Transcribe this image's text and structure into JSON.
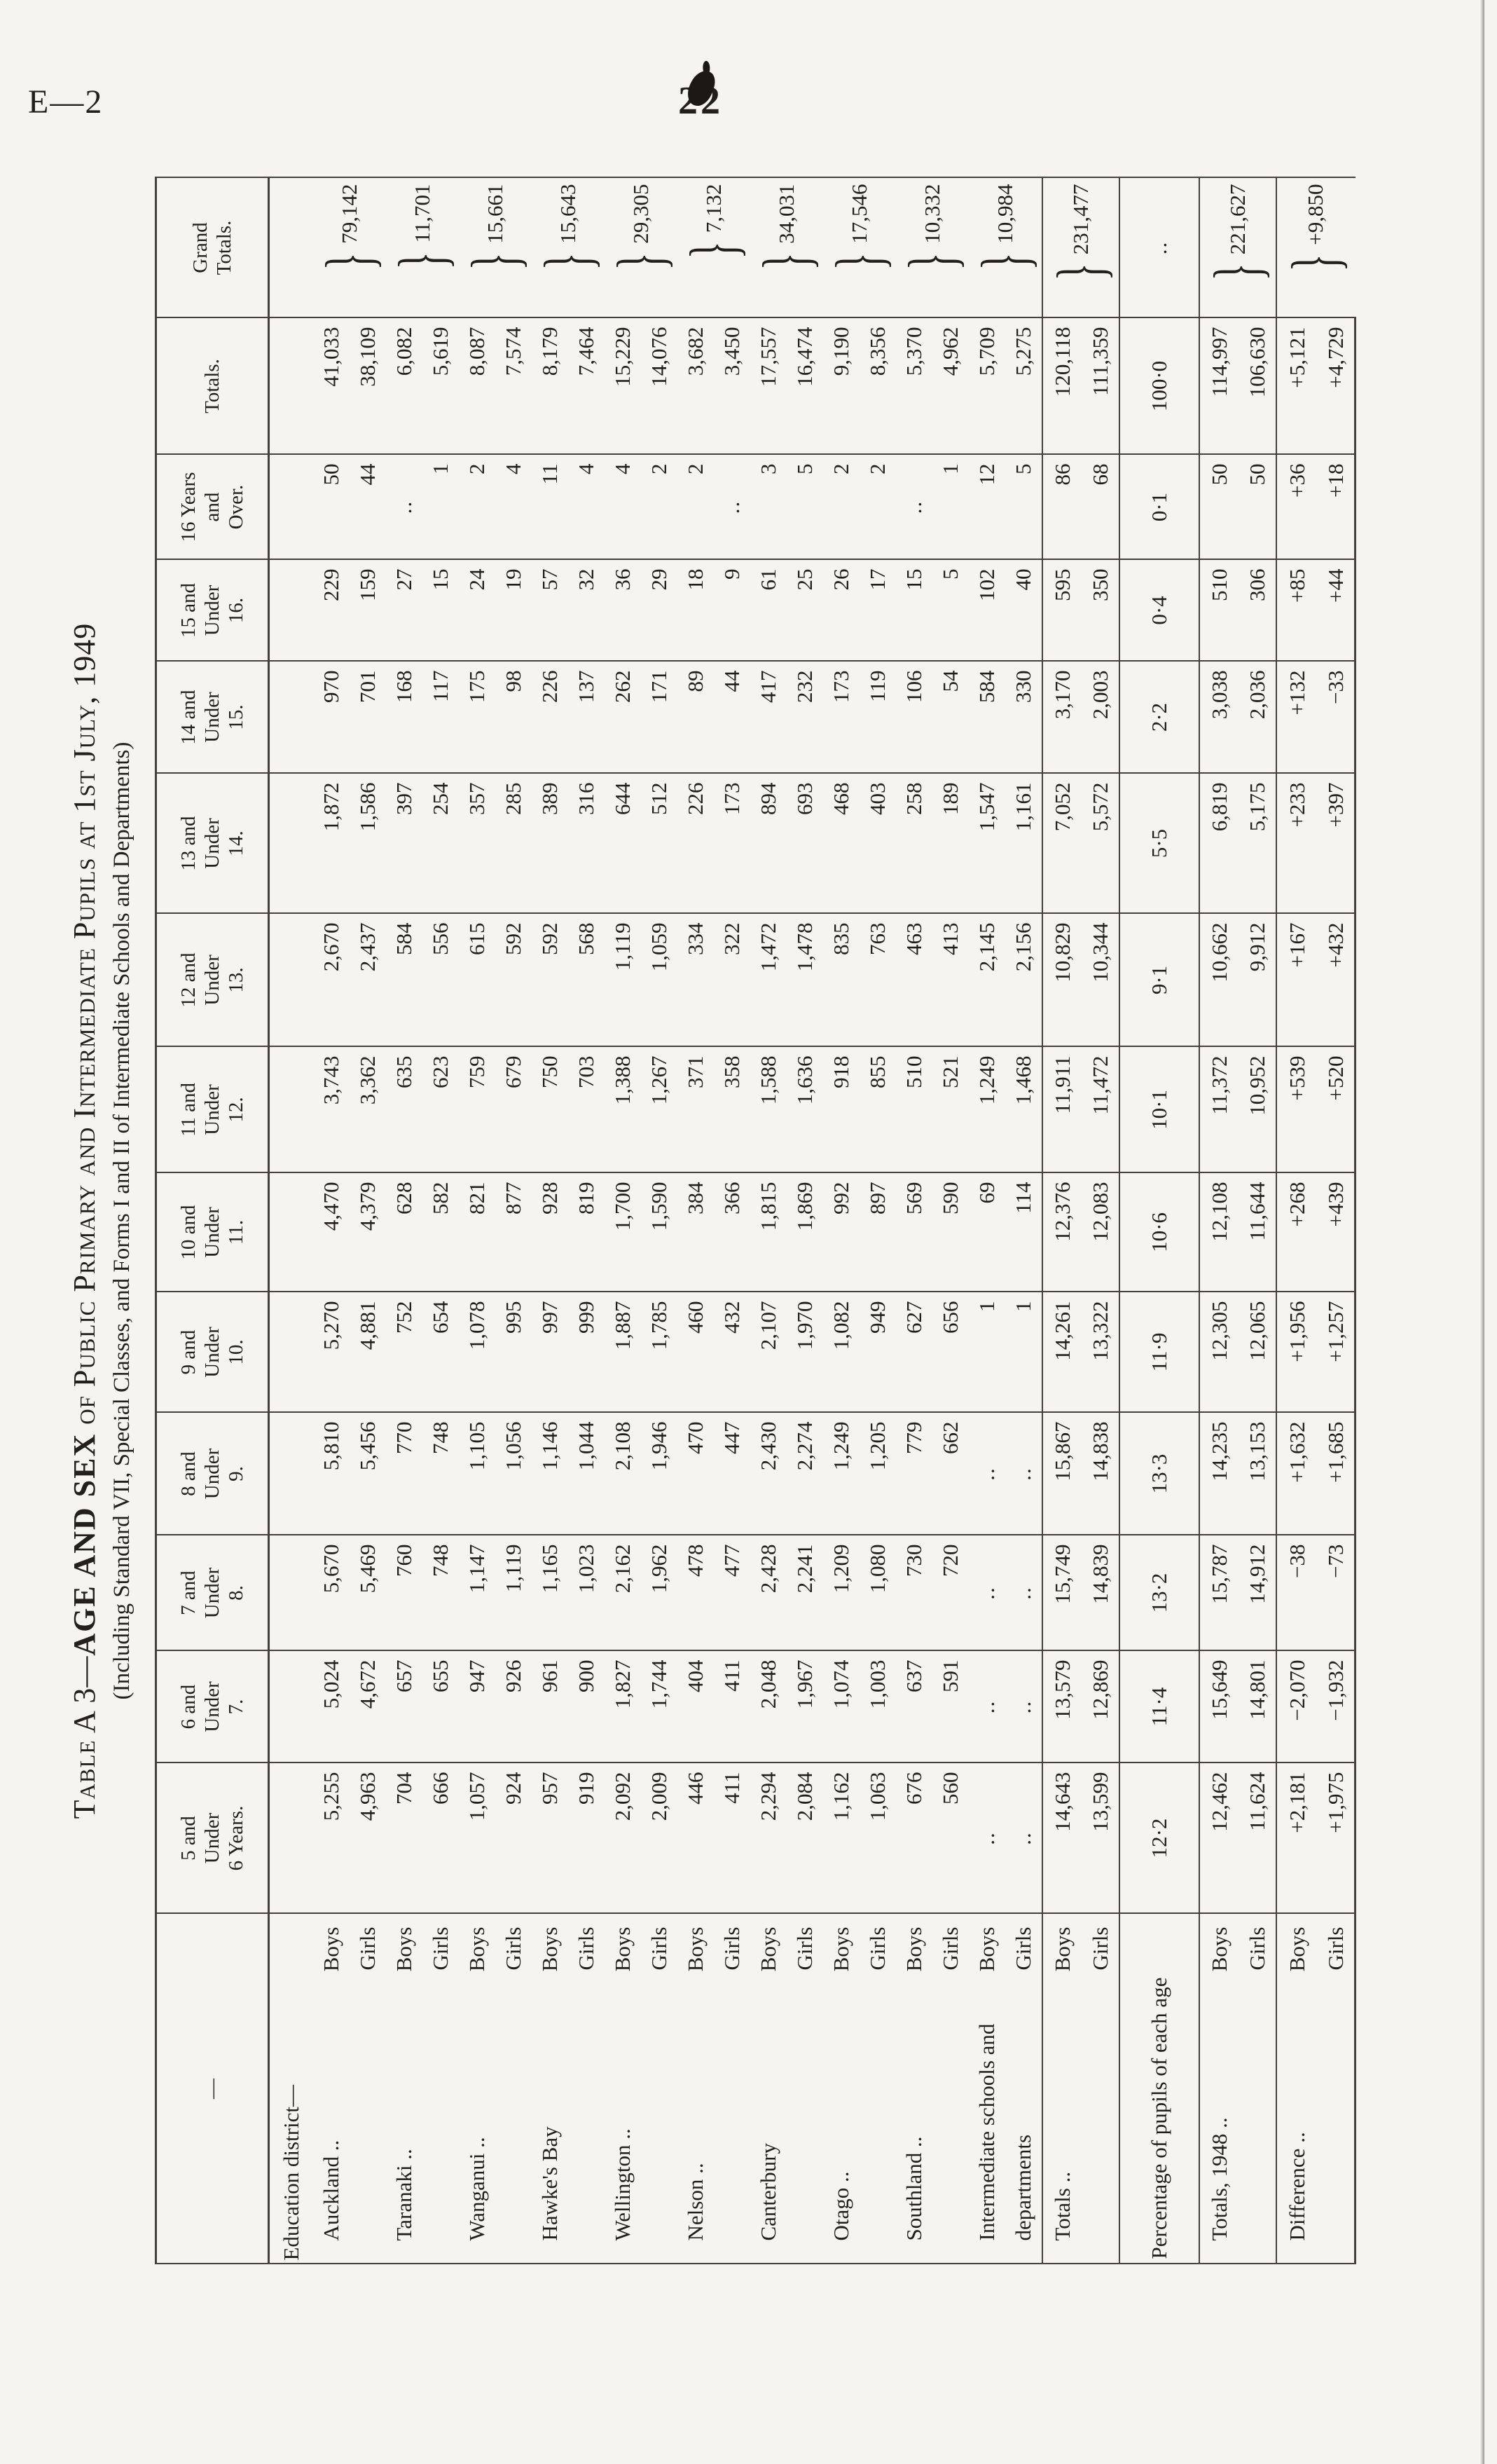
{
  "page": {
    "doc_ref": "E—2",
    "page_number": "22"
  },
  "title": {
    "prefix": "Table A 3—",
    "bold": "AGE AND SEX",
    "rest": " of Public Primary and Intermediate Pupils at 1st July, 1949",
    "subtitle": "(Including Standard VII, Special Classes, and Forms I and II of Intermediate Schools and Departments)"
  },
  "table": {
    "corner": "—",
    "age_headers": [
      [
        "5 and",
        "Under",
        "6 Years."
      ],
      [
        "6 and",
        "Under",
        "7."
      ],
      [
        "7 and",
        "Under",
        "8."
      ],
      [
        "8 and",
        "Under",
        "9."
      ],
      [
        "9 and",
        "Under",
        "10."
      ],
      [
        "10 and",
        "Under",
        "11."
      ],
      [
        "11 and",
        "Under",
        "12."
      ],
      [
        "12 and",
        "Under",
        "13."
      ],
      [
        "13 and",
        "Under",
        "14."
      ],
      [
        "14 and",
        "Under",
        "15."
      ],
      [
        "15 and",
        "Under",
        "16."
      ],
      [
        "16 Years",
        "and",
        "Over."
      ]
    ],
    "totals_header": "Totals.",
    "grand_header": [
      "Grand",
      "Totals."
    ],
    "section_label": "Education district—",
    "sex_labels": {
      "boys": "Boys",
      "girls": "Girls"
    },
    "blank": "..",
    "districts": [
      {
        "name": [
          "Auckland .."
        ],
        "boys": [
          "5,255",
          "5,024",
          "5,670",
          "5,810",
          "5,270",
          "4,470",
          "3,743",
          "2,670",
          "1,872",
          "970",
          "229",
          "50",
          "41,033"
        ],
        "girls": [
          "4,963",
          "4,672",
          "5,469",
          "5,456",
          "4,881",
          "4,379",
          "3,362",
          "2,437",
          "1,586",
          "701",
          "159",
          "44",
          "38,109"
        ],
        "grand": "79,142"
      },
      {
        "name": [
          "Taranaki .."
        ],
        "boys": [
          "704",
          "657",
          "760",
          "770",
          "752",
          "628",
          "635",
          "584",
          "397",
          "168",
          "27",
          "..",
          "6,082"
        ],
        "girls": [
          "666",
          "655",
          "748",
          "748",
          "654",
          "582",
          "623",
          "556",
          "254",
          "117",
          "15",
          "1",
          "5,619"
        ],
        "grand": "11,701"
      },
      {
        "name": [
          "Wanganui .."
        ],
        "boys": [
          "1,057",
          "947",
          "1,147",
          "1,105",
          "1,078",
          "821",
          "759",
          "615",
          "357",
          "175",
          "24",
          "2",
          "8,087"
        ],
        "girls": [
          "924",
          "926",
          "1,119",
          "1,056",
          "995",
          "877",
          "679",
          "592",
          "285",
          "98",
          "19",
          "4",
          "7,574"
        ],
        "grand": "15,661"
      },
      {
        "name": [
          "Hawke's Bay"
        ],
        "boys": [
          "957",
          "961",
          "1,165",
          "1,146",
          "997",
          "928",
          "750",
          "592",
          "389",
          "226",
          "57",
          "11",
          "8,179"
        ],
        "girls": [
          "919",
          "900",
          "1,023",
          "1,044",
          "999",
          "819",
          "703",
          "568",
          "316",
          "137",
          "32",
          "4",
          "7,464"
        ],
        "grand": "15,643"
      },
      {
        "name": [
          "Wellington .."
        ],
        "boys": [
          "2,092",
          "1,827",
          "2,162",
          "2,108",
          "1,887",
          "1,700",
          "1,388",
          "1,119",
          "644",
          "262",
          "36",
          "4",
          "15,229"
        ],
        "girls": [
          "2,009",
          "1,744",
          "1,962",
          "1,946",
          "1,785",
          "1,590",
          "1,267",
          "1,059",
          "512",
          "171",
          "29",
          "2",
          "14,076"
        ],
        "grand": "29,305"
      },
      {
        "name": [
          "Nelson .."
        ],
        "boys": [
          "446",
          "404",
          "478",
          "470",
          "460",
          "384",
          "371",
          "334",
          "226",
          "89",
          "18",
          "2",
          "3,682"
        ],
        "girls": [
          "411",
          "411",
          "477",
          "447",
          "432",
          "366",
          "358",
          "322",
          "173",
          "44",
          "9",
          "..",
          "3,450"
        ],
        "grand": "7,132"
      },
      {
        "name": [
          "Canterbury"
        ],
        "boys": [
          "2,294",
          "2,048",
          "2,428",
          "2,430",
          "2,107",
          "1,815",
          "1,588",
          "1,472",
          "894",
          "417",
          "61",
          "3",
          "17,557"
        ],
        "girls": [
          "2,084",
          "1,967",
          "2,241",
          "2,274",
          "1,970",
          "1,869",
          "1,636",
          "1,478",
          "693",
          "232",
          "25",
          "5",
          "16,474"
        ],
        "grand": "34,031"
      },
      {
        "name": [
          "Otago .."
        ],
        "boys": [
          "1,162",
          "1,074",
          "1,209",
          "1,249",
          "1,082",
          "992",
          "918",
          "835",
          "468",
          "173",
          "26",
          "2",
          "9,190"
        ],
        "girls": [
          "1,063",
          "1,003",
          "1,080",
          "1,205",
          "949",
          "897",
          "855",
          "763",
          "403",
          "119",
          "17",
          "2",
          "8,356"
        ],
        "grand": "17,546"
      },
      {
        "name": [
          "Southland .."
        ],
        "boys": [
          "676",
          "637",
          "730",
          "779",
          "627",
          "569",
          "510",
          "463",
          "258",
          "106",
          "15",
          "..",
          "5,370"
        ],
        "girls": [
          "560",
          "591",
          "720",
          "662",
          "656",
          "590",
          "521",
          "413",
          "189",
          "54",
          "5",
          "1",
          "4,962"
        ],
        "grand": "10,332"
      },
      {
        "name": [
          "Intermediate schools and",
          "departments"
        ],
        "boys": [
          "..",
          "..",
          "..",
          "..",
          "1",
          "69",
          "1,249",
          "2,145",
          "1,547",
          "584",
          "102",
          "12",
          "5,709"
        ],
        "girls": [
          "..",
          "..",
          "..",
          "..",
          "1",
          "114",
          "1,468",
          "2,156",
          "1,161",
          "330",
          "40",
          "5",
          "5,275"
        ],
        "grand": "10,984"
      }
    ],
    "totals": {
      "name": [
        "Totals .."
      ],
      "boys": [
        "14,643",
        "13,579",
        "15,749",
        "15,867",
        "14,261",
        "12,376",
        "11,911",
        "10,829",
        "7,052",
        "3,170",
        "595",
        "86",
        "120,118"
      ],
      "girls": [
        "13,599",
        "12,869",
        "14,839",
        "14,838",
        "13,322",
        "12,083",
        "11,472",
        "10,344",
        "5,572",
        "2,003",
        "350",
        "68",
        "111,359"
      ],
      "grand": "231,477"
    },
    "percentage": {
      "name": "Percentage of pupils of each age",
      "values": [
        "12·2",
        "11·4",
        "13·2",
        "13·3",
        "11·9",
        "10·6",
        "10·1",
        "9·1",
        "5·5",
        "2·2",
        "0·4",
        "0·1",
        "100·0"
      ],
      "grand": ".."
    },
    "totals_1948": {
      "name": [
        "Totals, 1948 .."
      ],
      "boys": [
        "12,462",
        "15,649",
        "15,787",
        "14,235",
        "12,305",
        "12,108",
        "11,372",
        "10,662",
        "6,819",
        "3,038",
        "510",
        "50",
        "114,997"
      ],
      "girls": [
        "11,624",
        "14,801",
        "14,912",
        "13,153",
        "12,065",
        "11,644",
        "10,952",
        "9,912",
        "5,175",
        "2,036",
        "306",
        "50",
        "106,630"
      ],
      "grand": "221,627"
    },
    "difference": {
      "name": [
        "Difference .."
      ],
      "boys": [
        "+2,181",
        "−2,070",
        "−38",
        "+1,632",
        "+1,956",
        "+268",
        "+539",
        "+167",
        "+233",
        "+132",
        "+85",
        "+36",
        "+5,121"
      ],
      "girls": [
        "+1,975",
        "−1,932",
        "−73",
        "+1,685",
        "+1,257",
        "+439",
        "+520",
        "+432",
        "+397",
        "−33",
        "+44",
        "+18",
        "+4,729"
      ],
      "grand": "+9,850"
    }
  }
}
